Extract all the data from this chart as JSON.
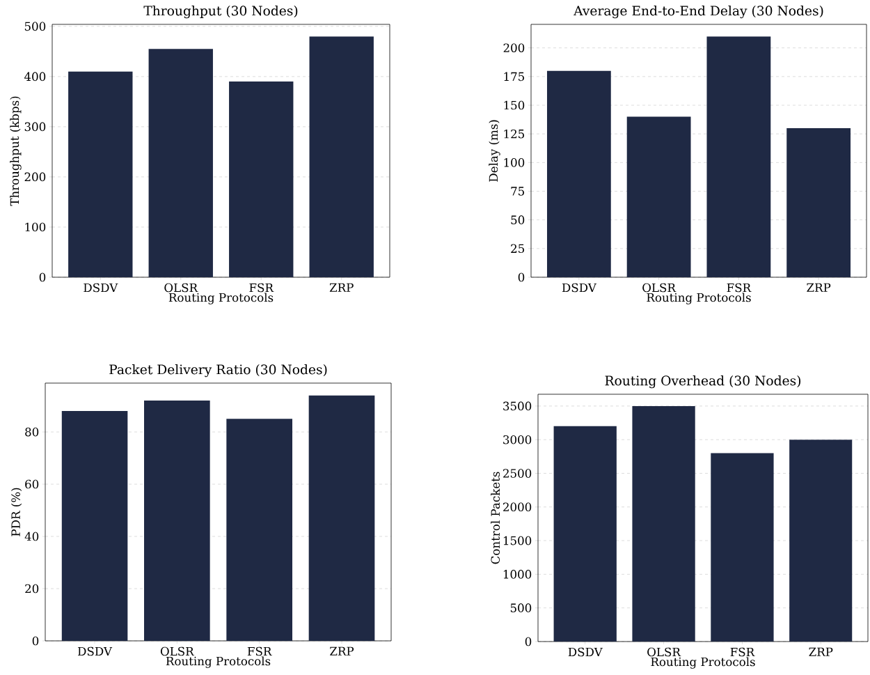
{
  "chart_data": [
    {
      "type": "bar",
      "title": "Throughput (30 Nodes)",
      "xlabel": "Routing Protocols",
      "ylabel": "Throughput (kbps)",
      "categories": [
        "DSDV",
        "OLSR",
        "FSR",
        "ZRP"
      ],
      "values": [
        410,
        455,
        390,
        480
      ],
      "color": "#1f2944",
      "ylim": [
        0,
        504
      ],
      "yticks": [
        0,
        100,
        200,
        300,
        400,
        500
      ],
      "grid": "y"
    },
    {
      "type": "bar",
      "title": "Average End-to-End Delay (30 Nodes)",
      "xlabel": "Routing Protocols",
      "ylabel": "Delay (ms)",
      "categories": [
        "DSDV",
        "OLSR",
        "FSR",
        "ZRP"
      ],
      "values": [
        180,
        140,
        210,
        130
      ],
      "color": "#1f2944",
      "ylim": [
        0,
        220.5
      ],
      "yticks": [
        0,
        25,
        50,
        75,
        100,
        125,
        150,
        175,
        200
      ],
      "grid": "y"
    },
    {
      "type": "bar",
      "title": "Packet Delivery Ratio (30 Nodes)",
      "xlabel": "Routing Protocols",
      "ylabel": "PDR (%)",
      "categories": [
        "DSDV",
        "OLSR",
        "FSR",
        "ZRP"
      ],
      "values": [
        88,
        92,
        85,
        94
      ],
      "color": "#1f2944",
      "ylim": [
        0,
        98.7
      ],
      "yticks": [
        0,
        20,
        40,
        60,
        80
      ],
      "grid": "y"
    },
    {
      "type": "bar",
      "title": "Routing Overhead (30 Nodes)",
      "xlabel": "Routing Protocols",
      "ylabel": "Control Packets",
      "categories": [
        "DSDV",
        "OLSR",
        "FSR",
        "ZRP"
      ],
      "values": [
        3200,
        3500,
        2800,
        3000
      ],
      "color": "#1f2944",
      "ylim": [
        0,
        3675
      ],
      "yticks": [
        0,
        500,
        1000,
        1500,
        2000,
        2500,
        3000,
        3500
      ],
      "grid": "y"
    }
  ]
}
